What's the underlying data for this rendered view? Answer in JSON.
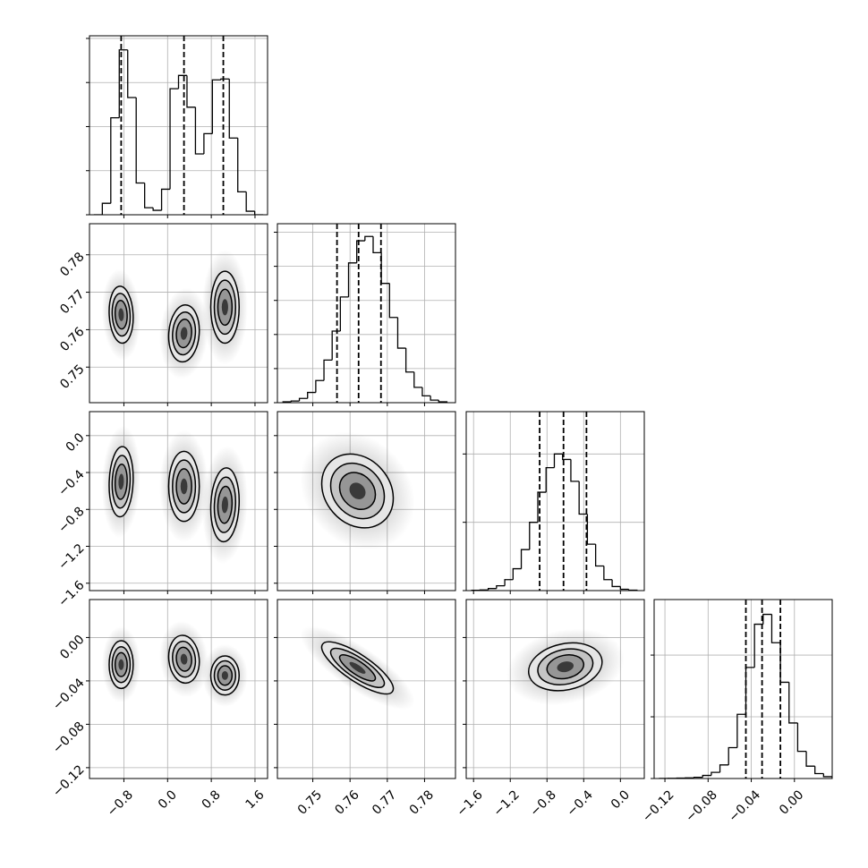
{
  "chart_data": {
    "type": "corner",
    "grid": true,
    "params": [
      {
        "lim": [
          -1.43,
          1.83
        ],
        "ticks": [
          {
            "value": -0.8,
            "label": "−0.8"
          },
          {
            "value": 0.0,
            "label": "0.0"
          },
          {
            "value": 0.8,
            "label": "0.8"
          },
          {
            "value": 1.6,
            "label": "1.6"
          }
        ],
        "quantiles": [
          -0.85,
          0.3,
          1.02
        ],
        "hist": {
          "bins": [
            -1.35,
            -1.195,
            -1.04,
            -0.885,
            -0.73,
            -0.575,
            -0.42,
            -0.265,
            -0.11,
            0.045,
            0.2,
            0.355,
            0.51,
            0.665,
            0.82,
            0.975,
            1.13,
            1.285,
            1.44,
            1.595,
            1.75
          ],
          "counts": [
            0,
            130,
            1100,
            1870,
            1330,
            360,
            80,
            50,
            290,
            1430,
            1580,
            1220,
            690,
            920,
            1530,
            1540,
            870,
            260,
            40,
            0
          ],
          "ylim": [
            0,
            2030
          ],
          "yticks": [
            0,
            500,
            1000,
            1500,
            2000
          ]
        }
      },
      {
        "lim": [
          0.7405,
          0.7883
        ],
        "ticks": [
          0.75,
          0.76,
          0.77,
          0.78
        ],
        "quantiles": [
          0.7565,
          0.7623,
          0.7683
        ],
        "hist": {
          "bins": [
            0.742,
            0.7442,
            0.7464,
            0.7486,
            0.7508,
            0.753,
            0.7552,
            0.7574,
            0.7596,
            0.7618,
            0.764,
            0.7662,
            0.7684,
            0.7706,
            0.7728,
            0.775,
            0.7772,
            0.7794,
            0.7816,
            0.7838,
            0.786
          ],
          "counts": [
            5,
            10,
            25,
            60,
            130,
            250,
            420,
            620,
            820,
            950,
            975,
            880,
            700,
            500,
            320,
            180,
            90,
            40,
            15,
            5
          ],
          "ylim": [
            0,
            1050
          ],
          "yticks": [
            0,
            200,
            400,
            600,
            800,
            1000
          ]
        }
      },
      {
        "lim": [
          -1.68,
          0.26
        ],
        "ticks": [
          {
            "value": -1.6,
            "label": "−1.6"
          },
          {
            "value": -1.2,
            "label": "−1.2"
          },
          {
            "value": -0.8,
            "label": "−0.8"
          },
          {
            "value": -0.4,
            "label": "−0.4"
          },
          {
            "value": 0.0,
            "label": "0.0"
          }
        ],
        "quantiles": [
          -0.88,
          -0.62,
          -0.37
        ],
        "hist": {
          "bins": [
            -1.62,
            -1.53,
            -1.44,
            -1.35,
            -1.26,
            -1.17,
            -1.08,
            -0.99,
            -0.9,
            -0.81,
            -0.72,
            -0.63,
            -0.54,
            -0.45,
            -0.36,
            -0.27,
            -0.18,
            -0.09,
            0.0,
            0.09,
            0.18
          ],
          "counts": [
            2,
            5,
            15,
            35,
            80,
            160,
            300,
            500,
            720,
            900,
            1000,
            960,
            800,
            560,
            340,
            180,
            80,
            30,
            10,
            3
          ],
          "ylim": [
            0,
            1310
          ],
          "yticks": [
            0,
            500,
            1000
          ]
        }
      },
      {
        "lim": [
          -0.13,
          0.035
        ],
        "ticks": [
          {
            "value": -0.12,
            "label": "−0.12"
          },
          {
            "value": -0.08,
            "label": "−0.08"
          },
          {
            "value": -0.04,
            "label": "−0.04"
          },
          {
            "value": 0.0,
            "label": "0.00"
          }
        ],
        "quantiles": [
          -0.045,
          -0.03,
          -0.013
        ],
        "hist": {
          "bins": [
            -0.125,
            -0.117,
            -0.109,
            -0.101,
            -0.093,
            -0.085,
            -0.077,
            -0.069,
            -0.061,
            -0.053,
            -0.045,
            -0.037,
            -0.029,
            -0.021,
            -0.013,
            -0.005,
            0.003,
            0.011,
            0.019,
            0.027,
            0.035
          ],
          "counts": [
            1,
            2,
            3,
            5,
            10,
            25,
            50,
            110,
            250,
            520,
            900,
            1250,
            1330,
            1100,
            780,
            450,
            220,
            100,
            40,
            15
          ],
          "ylim": [
            0,
            1450
          ],
          "yticks": [
            0,
            500,
            1000
          ]
        }
      }
    ],
    "pairs": [
      [
        {
          "blobs": [
            {
              "x": -0.85,
              "y": 0.764,
              "sx": 0.11,
              "sy": 0.0038,
              "rho": -0.1
            },
            {
              "x": 0.3,
              "y": 0.759,
              "sx": 0.14,
              "sy": 0.0038,
              "rho": 0.1
            },
            {
              "x": 1.05,
              "y": 0.766,
              "sx": 0.13,
              "sy": 0.0048,
              "rho": 0.0
            }
          ]
        }
      ],
      [
        {
          "blobs": [
            {
              "x": -0.85,
              "y": -0.5,
              "sx": 0.11,
              "sy": 0.19,
              "rho": 0.1
            },
            {
              "x": 0.3,
              "y": -0.55,
              "sx": 0.14,
              "sy": 0.19,
              "rho": 0.0
            },
            {
              "x": 1.05,
              "y": -0.75,
              "sx": 0.13,
              "sy": 0.2,
              "rho": 0.1
            }
          ]
        },
        {
          "blobs": [
            {
              "x": 0.762,
              "y": -0.6,
              "sx": 0.0048,
              "sy": 0.2,
              "rho": -0.2
            }
          ]
        }
      ],
      [
        {
          "blobs": [
            {
              "x": -0.85,
              "y": -0.025,
              "sx": 0.11,
              "sy": 0.011,
              "rho": 0.0
            },
            {
              "x": 0.3,
              "y": -0.02,
              "sx": 0.14,
              "sy": 0.011,
              "rho": -0.1
            },
            {
              "x": 1.05,
              "y": -0.035,
              "sx": 0.13,
              "sy": 0.009,
              "rho": 0.0
            }
          ]
        },
        {
          "blobs": [
            {
              "x": 0.762,
              "y": -0.028,
              "sx": 0.0048,
              "sy": 0.012,
              "rho": -0.8
            }
          ]
        },
        {
          "blobs": [
            {
              "x": -0.6,
              "y": -0.027,
              "sx": 0.2,
              "sy": 0.011,
              "rho": 0.2
            }
          ]
        }
      ]
    ]
  }
}
